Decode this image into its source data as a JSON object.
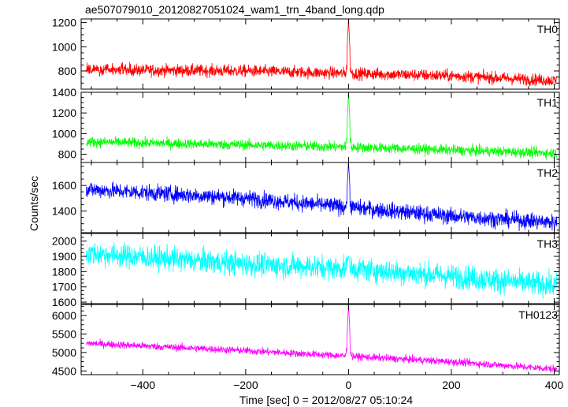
{
  "chart_data": {
    "type": "line",
    "title": "ae507079010_20120827051024_wam1_trn_4band_long.qdp",
    "xlabel": "Time [sec] 0 = 2012/08/27 05:10:24",
    "ylabel": "Counts/sec",
    "xlim": [
      -520,
      410
    ],
    "x_ticks": [
      -400,
      -200,
      0,
      200,
      400
    ],
    "x_tick_labels": [
      "−400",
      "−200",
      "0",
      "200",
      "400"
    ],
    "x_range": [
      -510,
      405
    ],
    "grid": false,
    "legend": "none",
    "panels": [
      {
        "name": "TH0",
        "color": "#ff0000",
        "ylim": [
          650,
          1230
        ],
        "y_ticks": [
          800,
          1000,
          1200
        ],
        "trend": [
          [
            -510,
            810
          ],
          [
            -200,
            800
          ],
          [
            0,
            780
          ],
          [
            200,
            760
          ],
          [
            405,
            720
          ]
        ],
        "noise": 35,
        "peak": 1230
      },
      {
        "name": "TH1",
        "color": "#00ff00",
        "ylim": [
          720,
          1400
        ],
        "y_ticks": [
          800,
          1000,
          1200,
          1400
        ],
        "trend": [
          [
            -510,
            920
          ],
          [
            -200,
            890
          ],
          [
            0,
            870
          ],
          [
            200,
            840
          ],
          [
            405,
            810
          ]
        ],
        "noise": 35,
        "peak": 1400
      },
      {
        "name": "TH2",
        "color": "#0000ff",
        "ylim": [
          1230,
          1780
        ],
        "y_ticks": [
          1400,
          1600
        ],
        "trend": [
          [
            -510,
            1570
          ],
          [
            -200,
            1500
          ],
          [
            0,
            1430
          ],
          [
            200,
            1360
          ],
          [
            405,
            1310
          ]
        ],
        "noise": 45,
        "peak": 1780
      },
      {
        "name": "TH3",
        "color": "#00ffff",
        "ylim": [
          1590,
          2050
        ],
        "y_ticks": [
          1600,
          1700,
          1800,
          1900,
          2000
        ],
        "trend": [
          [
            -510,
            1920
          ],
          [
            -200,
            1850
          ],
          [
            0,
            1820
          ],
          [
            200,
            1770
          ],
          [
            405,
            1710
          ]
        ],
        "noise": 55,
        "peak": 1900
      },
      {
        "name": "TH0123",
        "color": "#ff00ff",
        "ylim": [
          4400,
          6300
        ],
        "y_ticks": [
          4500,
          5000,
          5500,
          6000
        ],
        "trend": [
          [
            -510,
            5250
          ],
          [
            -200,
            5050
          ],
          [
            0,
            4900
          ],
          [
            200,
            4750
          ],
          [
            405,
            4550
          ]
        ],
        "noise": 70,
        "peak": 6300
      }
    ]
  }
}
